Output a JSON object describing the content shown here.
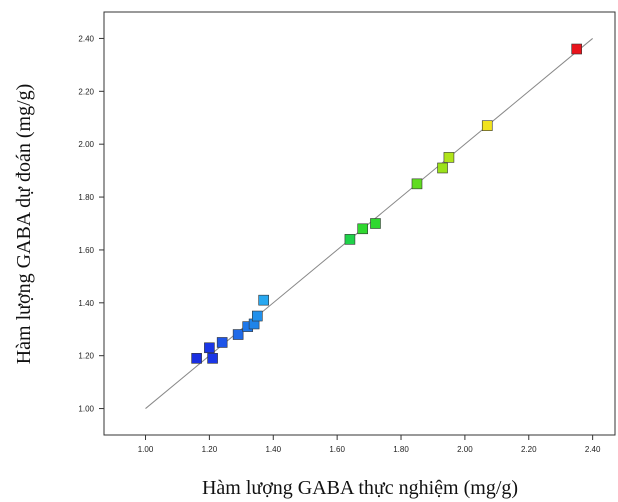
{
  "chart_data": {
    "type": "scatter",
    "xlabel": "Hàm lượng GABA thực nghiệm (mg/g)",
    "ylabel": "Hàm lượng GABA dự đoán (mg/g)",
    "xlim": [
      0.87,
      2.47
    ],
    "ylim": [
      0.9,
      2.5
    ],
    "x_ticks": [
      "1.00",
      "1.20",
      "1.40",
      "1.60",
      "1.80",
      "2.00",
      "2.20",
      "2.40"
    ],
    "y_ticks": [
      "1.00",
      "1.20",
      "1.40",
      "1.60",
      "1.80",
      "2.00",
      "2.20",
      "2.40"
    ],
    "reference_line": {
      "from": [
        1.0,
        1.0
      ],
      "to": [
        2.4,
        2.4
      ],
      "color": "#888888"
    },
    "grid": false,
    "legend": "none",
    "points": [
      {
        "x": 1.16,
        "y": 1.19,
        "color": "#1a2fe0"
      },
      {
        "x": 1.2,
        "y": 1.23,
        "color": "#1a36e6"
      },
      {
        "x": 1.21,
        "y": 1.19,
        "color": "#1a36e6"
      },
      {
        "x": 1.24,
        "y": 1.25,
        "color": "#1f55e8"
      },
      {
        "x": 1.29,
        "y": 1.28,
        "color": "#1f6ae8"
      },
      {
        "x": 1.32,
        "y": 1.31,
        "color": "#1f78ea"
      },
      {
        "x": 1.34,
        "y": 1.32,
        "color": "#1f84ea"
      },
      {
        "x": 1.35,
        "y": 1.35,
        "color": "#2090ec"
      },
      {
        "x": 1.37,
        "y": 1.41,
        "color": "#28a8f0"
      },
      {
        "x": 1.64,
        "y": 1.64,
        "color": "#1fd24a"
      },
      {
        "x": 1.68,
        "y": 1.68,
        "color": "#30d830"
      },
      {
        "x": 1.72,
        "y": 1.7,
        "color": "#30d830"
      },
      {
        "x": 1.85,
        "y": 1.85,
        "color": "#60dc20"
      },
      {
        "x": 1.93,
        "y": 1.91,
        "color": "#9be21a"
      },
      {
        "x": 1.95,
        "y": 1.95,
        "color": "#b0e41a"
      },
      {
        "x": 2.07,
        "y": 2.07,
        "color": "#f2e31e"
      },
      {
        "x": 2.35,
        "y": 2.36,
        "color": "#e8141c"
      }
    ]
  }
}
